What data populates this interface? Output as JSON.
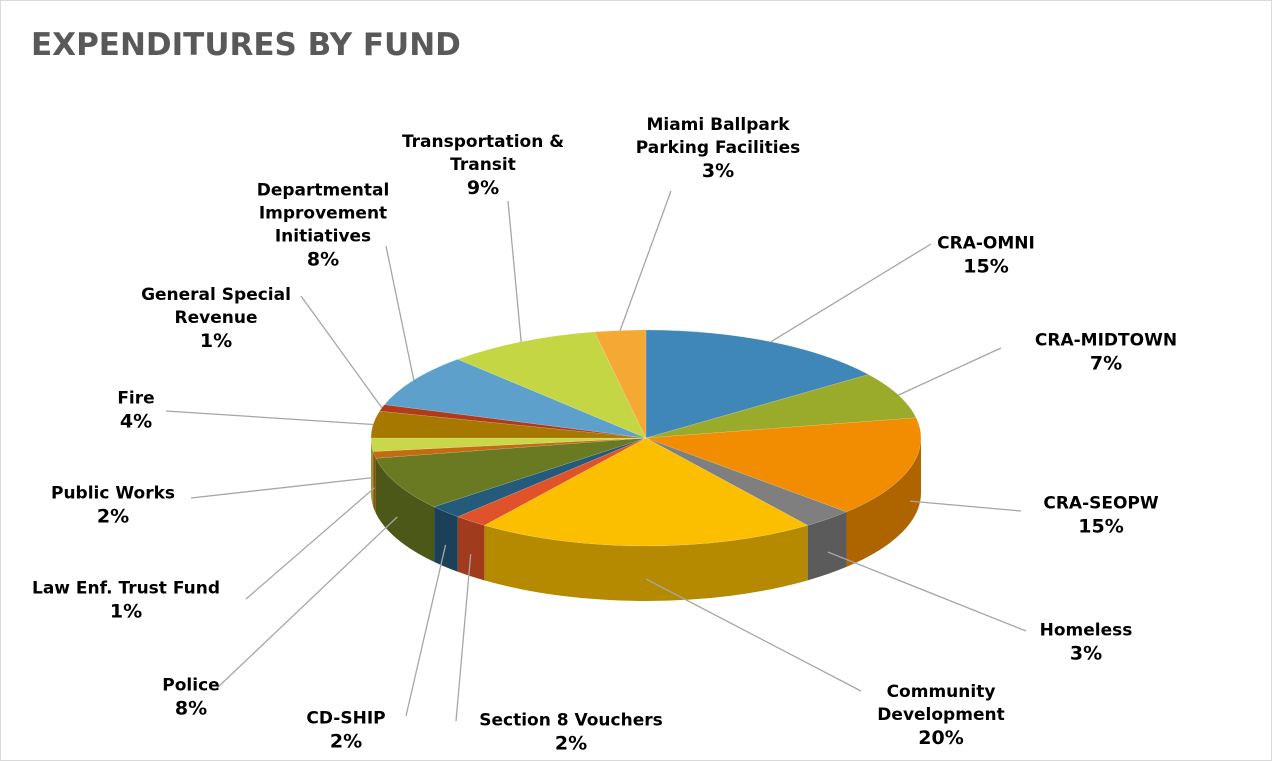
{
  "chart_data": {
    "type": "pie",
    "title": "EXPENDITURES BY FUND",
    "categories": [
      "CRA-OMNI",
      "CRA-MIDTOWN",
      "CRA-SEOPW",
      "Homeless",
      "Community Development",
      "Section 8 Vouchers",
      "CD-SHIP",
      "Police",
      "Law Enf. Trust Fund",
      "Public Works",
      "Fire",
      "General Special Revenue",
      "Departmental Improvement Initiatives",
      "Transportation & Transit",
      "Miami Ballpark Parking Facilities"
    ],
    "values": [
      15,
      7,
      15,
      3,
      20,
      2,
      2,
      8,
      1,
      2,
      4,
      1,
      8,
      9,
      3
    ],
    "value_labels": [
      "15%",
      "7%",
      "15%",
      "3%",
      "20%",
      "2%",
      "2%",
      "8%",
      "1%",
      "2%",
      "4%",
      "1%",
      "8%",
      "9%",
      "3%"
    ],
    "colors": [
      "#3f87b8",
      "#9aab2c",
      "#f28c00",
      "#7f7f7f",
      "#fbbf00",
      "#e0522a",
      "#245a7a",
      "#6a7a22",
      "#c46a10",
      "#c9d84a",
      "#a67800",
      "#b03a1a",
      "#5ea0cc",
      "#c5d645",
      "#f5a833"
    ]
  }
}
